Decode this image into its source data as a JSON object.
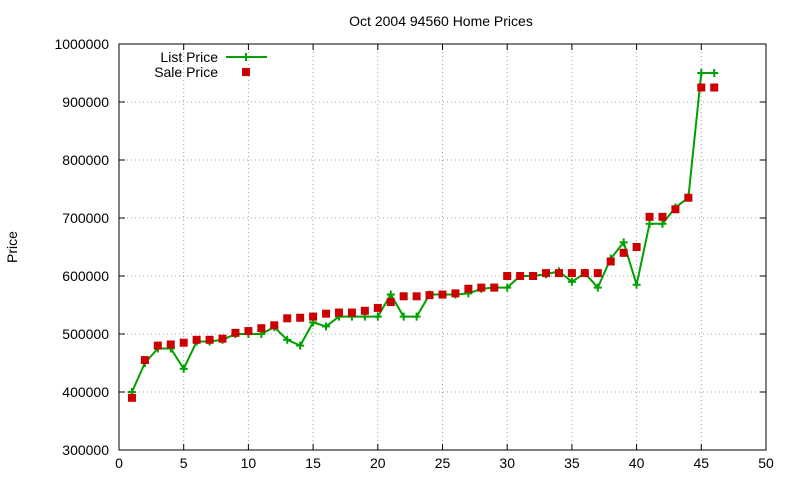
{
  "chart_data": {
    "type": "line",
    "title": "Oct 2004 94560 Home Prices",
    "xlabel": "",
    "ylabel": "Price",
    "xlim": [
      0,
      50
    ],
    "ylim": [
      300000,
      1000000
    ],
    "xticks": [
      0,
      5,
      10,
      15,
      20,
      25,
      30,
      35,
      40,
      45,
      50
    ],
    "yticks": [
      300000,
      400000,
      500000,
      600000,
      700000,
      800000,
      900000,
      1000000
    ],
    "grid": true,
    "legend_position": "top-left",
    "series": [
      {
        "name": "List Price",
        "style": "line+plus",
        "color": "#00a000",
        "x": [
          1,
          2,
          3,
          4,
          5,
          6,
          7,
          8,
          9,
          10,
          11,
          12,
          13,
          14,
          15,
          16,
          17,
          18,
          19,
          20,
          21,
          22,
          23,
          24,
          25,
          26,
          27,
          28,
          29,
          30,
          31,
          32,
          33,
          34,
          35,
          36,
          37,
          38,
          39,
          40,
          41,
          42,
          43,
          44,
          45,
          46
        ],
        "y": [
          400000,
          450000,
          475000,
          475000,
          440000,
          487000,
          487000,
          490000,
          500000,
          500000,
          500000,
          512000,
          490000,
          480000,
          520000,
          513000,
          530000,
          530000,
          530000,
          530000,
          568000,
          530000,
          530000,
          568000,
          568000,
          568000,
          570000,
          578000,
          580000,
          580000,
          600000,
          600000,
          603000,
          608000,
          590000,
          605000,
          580000,
          630000,
          658000,
          585000,
          690000,
          690000,
          718000,
          735000,
          950000,
          950000
        ]
      },
      {
        "name": "Sale Price",
        "style": "square",
        "color": "#cc0000",
        "x": [
          1,
          2,
          3,
          4,
          5,
          6,
          7,
          8,
          9,
          10,
          11,
          12,
          13,
          14,
          15,
          16,
          17,
          18,
          19,
          20,
          21,
          22,
          23,
          24,
          25,
          26,
          27,
          28,
          29,
          30,
          31,
          32,
          33,
          34,
          35,
          36,
          37,
          38,
          39,
          40,
          41,
          42,
          43,
          44,
          45,
          46
        ],
        "y": [
          390000,
          455000,
          480000,
          482000,
          485000,
          490000,
          490000,
          492000,
          502000,
          505000,
          510000,
          515000,
          527000,
          528000,
          530000,
          535000,
          537000,
          537000,
          540000,
          545000,
          555000,
          565000,
          565000,
          567000,
          568000,
          570000,
          578000,
          580000,
          580000,
          600000,
          600000,
          600000,
          605000,
          605000,
          605000,
          605000,
          605000,
          625000,
          640000,
          650000,
          702000,
          702000,
          715000,
          735000,
          925000,
          925000
        ]
      }
    ]
  }
}
